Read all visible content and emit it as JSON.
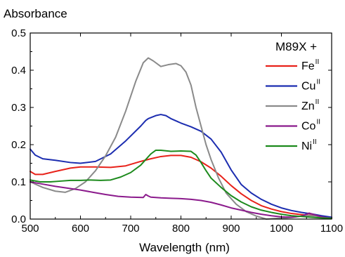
{
  "chart_data": {
    "type": "line",
    "ylabel": "Absorbance",
    "xlabel": "Wavelength (nm)",
    "xlim": [
      500,
      1100
    ],
    "ylim": [
      0.0,
      0.5
    ],
    "xticks": [
      "500",
      "600",
      "700",
      "800",
      "900",
      "1000",
      "1100"
    ],
    "yticks": [
      "0.0",
      "0.1",
      "0.2",
      "0.3",
      "0.4",
      "0.5"
    ],
    "grid": false,
    "legend_placement": "top-right",
    "legend_title": "M89X +",
    "series": [
      {
        "name": "Fe",
        "sup": "II",
        "color": "#e8221a",
        "x": [
          500,
          510,
          525,
          550,
          580,
          600,
          630,
          660,
          690,
          720,
          740,
          760,
          780,
          800,
          820,
          840,
          860,
          880,
          900,
          920,
          940,
          960,
          980,
          1000,
          1020,
          1040,
          1060,
          1080,
          1100
        ],
        "y": [
          0.128,
          0.12,
          0.12,
          0.128,
          0.137,
          0.14,
          0.14,
          0.139,
          0.143,
          0.155,
          0.162,
          0.168,
          0.171,
          0.171,
          0.166,
          0.154,
          0.137,
          0.115,
          0.09,
          0.068,
          0.05,
          0.036,
          0.027,
          0.02,
          0.015,
          0.012,
          0.01,
          0.007,
          0.004
        ]
      },
      {
        "name": "Cu",
        "sup": "II",
        "color": "#1c2db0",
        "x": [
          500,
          510,
          525,
          550,
          580,
          600,
          630,
          660,
          690,
          720,
          730,
          735,
          750,
          760,
          770,
          780,
          800,
          820,
          840,
          860,
          880,
          900,
          920,
          940,
          960,
          980,
          1000,
          1020,
          1040,
          1060,
          1080,
          1100
        ],
        "y": [
          0.188,
          0.172,
          0.162,
          0.158,
          0.152,
          0.15,
          0.155,
          0.175,
          0.21,
          0.25,
          0.265,
          0.27,
          0.278,
          0.281,
          0.278,
          0.27,
          0.258,
          0.248,
          0.236,
          0.215,
          0.18,
          0.132,
          0.093,
          0.07,
          0.053,
          0.04,
          0.03,
          0.023,
          0.018,
          0.014,
          0.009,
          0.005
        ]
      },
      {
        "name": "Zn",
        "sup": "II",
        "color": "#8a8a8a",
        "x": [
          500,
          525,
          550,
          570,
          590,
          610,
          630,
          650,
          670,
          690,
          710,
          725,
          735,
          745,
          760,
          775,
          790,
          800,
          810,
          820,
          830,
          840,
          850,
          860,
          875,
          890,
          910,
          930,
          950,
          970,
          990,
          1010,
          1030,
          1050,
          1070,
          1085,
          1100
        ],
        "y": [
          0.1,
          0.085,
          0.075,
          0.072,
          0.082,
          0.1,
          0.13,
          0.17,
          0.22,
          0.29,
          0.37,
          0.42,
          0.433,
          0.425,
          0.41,
          0.415,
          0.418,
          0.412,
          0.395,
          0.36,
          0.3,
          0.25,
          0.2,
          0.16,
          0.11,
          0.07,
          0.04,
          0.02,
          0.008,
          0.0,
          0.002,
          0.003,
          0.006,
          0.01,
          0.008,
          0.004,
          0.002
        ]
      },
      {
        "name": "Co",
        "sup": "II",
        "color": "#8b1a8c",
        "x": [
          500,
          525,
          550,
          575,
          600,
          625,
          650,
          675,
          700,
          725,
          730,
          735,
          740,
          760,
          780,
          800,
          820,
          840,
          860,
          880,
          900,
          920,
          940,
          960,
          980,
          1000,
          1020,
          1040,
          1055,
          1065,
          1080,
          1100
        ],
        "y": [
          0.1,
          0.094,
          0.088,
          0.083,
          0.078,
          0.072,
          0.066,
          0.061,
          0.059,
          0.058,
          0.066,
          0.062,
          0.059,
          0.057,
          0.056,
          0.055,
          0.053,
          0.05,
          0.045,
          0.038,
          0.03,
          0.024,
          0.018,
          0.013,
          0.009,
          0.006,
          0.005,
          0.008,
          0.016,
          0.012,
          0.006,
          0.002
        ]
      },
      {
        "name": "Ni",
        "sup": "II",
        "color": "#1c8a1c",
        "x": [
          500,
          520,
          540,
          560,
          580,
          600,
          620,
          640,
          660,
          680,
          700,
          720,
          730,
          740,
          750,
          760,
          780,
          800,
          820,
          830,
          840,
          850,
          860,
          880,
          900,
          920,
          940,
          960,
          980,
          1000,
          1020,
          1040,
          1060,
          1080,
          1100
        ],
        "y": [
          0.105,
          0.1,
          0.1,
          0.102,
          0.104,
          0.104,
          0.105,
          0.104,
          0.105,
          0.113,
          0.125,
          0.145,
          0.16,
          0.175,
          0.185,
          0.185,
          0.182,
          0.183,
          0.182,
          0.172,
          0.152,
          0.13,
          0.11,
          0.085,
          0.063,
          0.046,
          0.033,
          0.024,
          0.018,
          0.013,
          0.009,
          0.007,
          0.005,
          0.003,
          0.002
        ]
      }
    ]
  }
}
